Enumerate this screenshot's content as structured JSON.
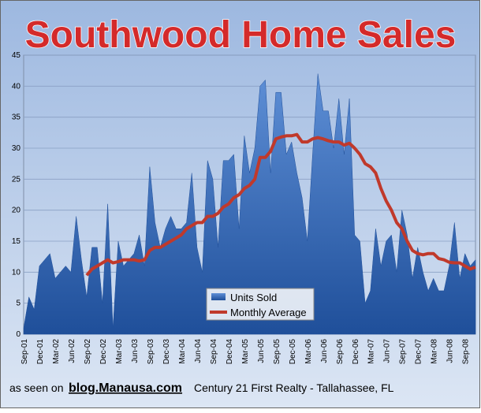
{
  "chart_data": {
    "type": "area-line",
    "title": "Southwood Home Sales",
    "categories": [
      "Sep-01",
      null,
      null,
      "Dec-01",
      null,
      null,
      "Mar-02",
      null,
      null,
      "Jun-02",
      null,
      null,
      "Sep-02",
      null,
      null,
      "Dec-02",
      null,
      null,
      "Mar-03",
      null,
      null,
      "Jun-03",
      null,
      null,
      "Sep-03",
      null,
      null,
      "Dec-03",
      null,
      null,
      "Mar-04",
      null,
      null,
      "Jun-04",
      null,
      null,
      "Sep-04",
      null,
      null,
      "Dec-04",
      null,
      null,
      "Mar-05",
      null,
      null,
      "Jun-05",
      null,
      null,
      "Sep-05",
      null,
      null,
      "Dec-05",
      null,
      null,
      "Mar-06",
      null,
      null,
      "Jun-06",
      null,
      null,
      "Sep-06",
      null,
      null,
      "Dec-06",
      null,
      null,
      "Mar-07",
      null,
      null,
      "Jun-07",
      null,
      null,
      "Sep-07",
      null,
      null,
      "Dec-07",
      null,
      null,
      "Mar-08",
      null,
      null,
      "Jun-08",
      null,
      null,
      "Sep-08",
      null,
      null
    ],
    "series": [
      {
        "name": "Units Sold",
        "color": "#2e5fa8",
        "kind": "area",
        "values": [
          1,
          6,
          4,
          11,
          12,
          13,
          9,
          10,
          11,
          10,
          19,
          12,
          6,
          14,
          14,
          5,
          21,
          1,
          15,
          11,
          12,
          13,
          16,
          11,
          27,
          18,
          14,
          17,
          19,
          17,
          17,
          18,
          26,
          14,
          10,
          28,
          25,
          14,
          28,
          28,
          29,
          17,
          32,
          26,
          30,
          40,
          41,
          26,
          39,
          39,
          29,
          31,
          26,
          22,
          15,
          29,
          42,
          36,
          36,
          30,
          38,
          29,
          38,
          16,
          15,
          5,
          7,
          17,
          11,
          15,
          16,
          10,
          20,
          16,
          9,
          14,
          10,
          7,
          9,
          7,
          7,
          11,
          18,
          9,
          13,
          11,
          12
        ]
      },
      {
        "name": "Monthly Average",
        "color": "#c0392b",
        "kind": "line",
        "values": [
          null,
          null,
          null,
          null,
          null,
          null,
          null,
          null,
          null,
          null,
          null,
          null,
          9.5,
          10.5,
          11,
          11.5,
          12,
          11.5,
          11.7,
          12,
          12,
          12,
          11.8,
          12,
          13.5,
          14,
          14,
          14.5,
          15,
          15.5,
          16,
          17,
          17.5,
          18,
          18,
          19,
          19,
          19.5,
          20.5,
          21,
          22,
          22.5,
          23.5,
          24,
          25,
          28.5,
          28.5,
          29.5,
          31.5,
          31.8,
          32,
          32,
          32.2,
          31,
          31,
          31.5,
          31.7,
          31.5,
          31.2,
          31,
          31,
          30.5,
          30.8,
          30,
          29,
          27.5,
          27,
          26,
          23.5,
          21.5,
          20,
          18,
          17,
          15,
          13.5,
          13,
          12.8,
          13,
          13,
          12.2,
          12,
          11.6,
          11.5,
          11.5,
          11,
          10.5,
          10.8
        ]
      }
    ],
    "ylim": [
      0,
      45
    ],
    "yticks": [
      0,
      5,
      10,
      15,
      20,
      25,
      30,
      35,
      40,
      45
    ],
    "grid": true
  },
  "footer": {
    "prefix": "as seen on",
    "site": "blog.Manausa.com",
    "company": "Century 21 First Realty - Tallahassee, FL"
  }
}
